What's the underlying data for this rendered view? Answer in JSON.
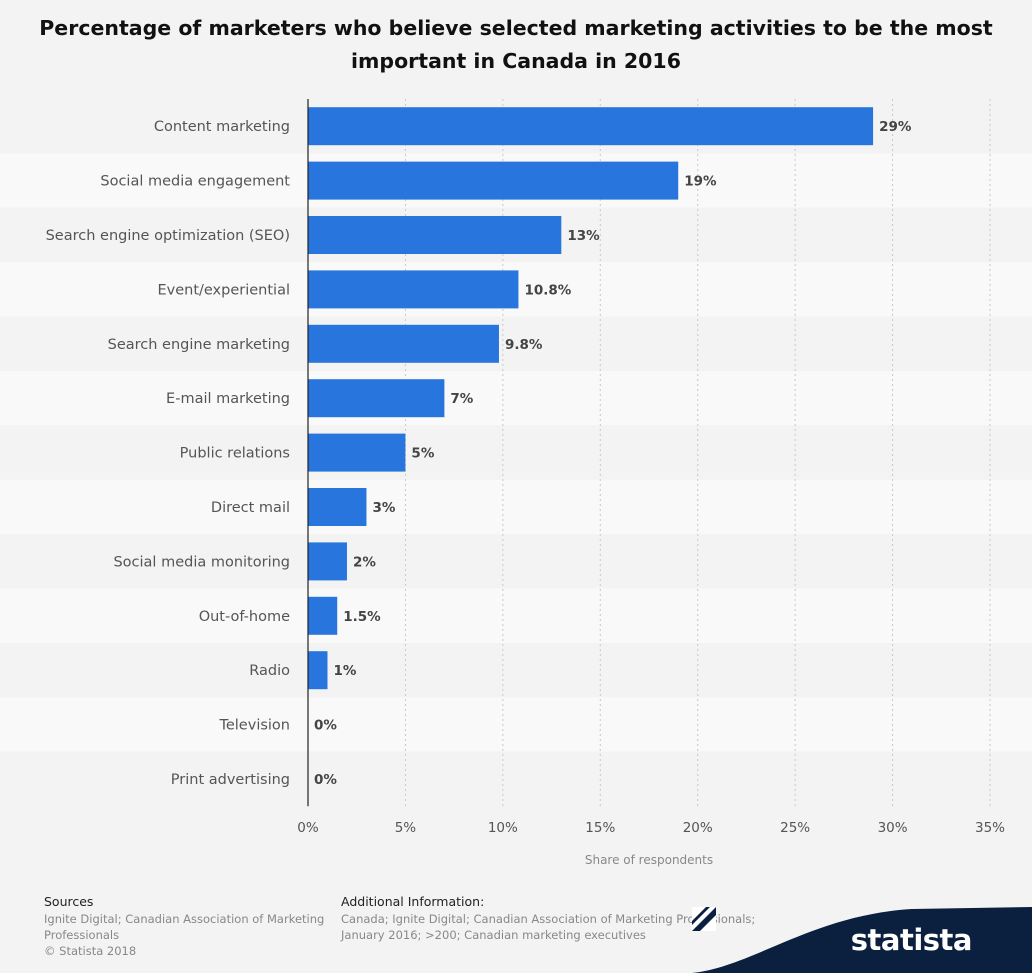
{
  "chart_data": {
    "type": "bar",
    "orientation": "horizontal",
    "title": "Percentage of marketers who believe selected marketing activities to be the most important in Canada in 2016",
    "xlabel": "Share of respondents",
    "ylabel": "",
    "xlim": [
      0,
      35
    ],
    "xticks": [
      "0%",
      "5%",
      "10%",
      "15%",
      "20%",
      "25%",
      "30%",
      "35%"
    ],
    "grid": true,
    "categories": [
      "Content marketing",
      "Social media engagement",
      "Search engine optimization (SEO)",
      "Event/experiential",
      "Search engine marketing",
      "E-mail marketing",
      "Public relations",
      "Direct mail",
      "Social media monitoring",
      "Out-of-home",
      "Radio",
      "Television",
      "Print advertising"
    ],
    "values": [
      29,
      19,
      13,
      10.8,
      9.8,
      7,
      5,
      3,
      2,
      1.5,
      1,
      0,
      0
    ],
    "value_labels": [
      "29%",
      "19%",
      "13%",
      "10.8%",
      "9.8%",
      "7%",
      "5%",
      "3%",
      "2%",
      "1.5%",
      "1%",
      "0%",
      "0%"
    ],
    "bar_color": "#2876dd"
  },
  "footer": {
    "sources_header": "Sources",
    "sources_text": "Ignite Digital; Canadian Association of Marketing Professionals",
    "copyright": "© Statista 2018",
    "additional_header": "Additional Information:",
    "additional_text": "Canada; Ignite Digital; Canadian Association of Marketing Professionals; January 2016; >200; Canadian marketing executives"
  },
  "brand": {
    "name": "statista",
    "color": "#0b1f3f"
  }
}
